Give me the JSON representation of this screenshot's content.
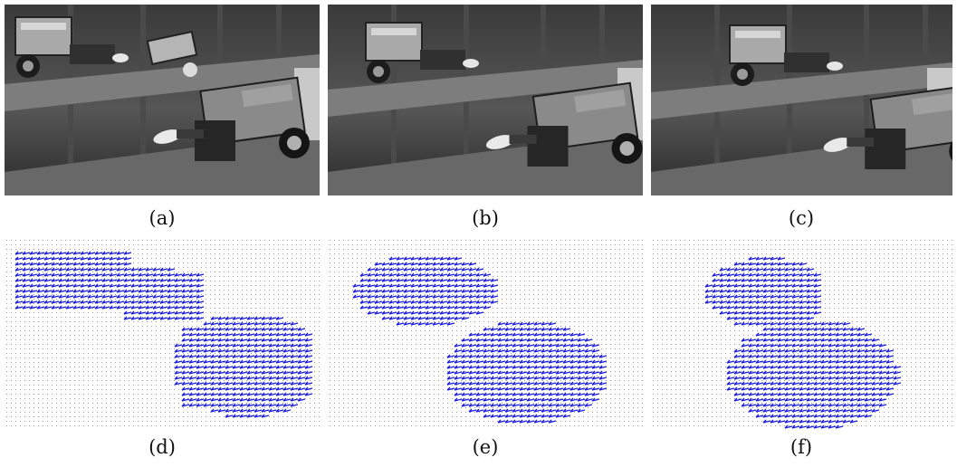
{
  "figure": {
    "panels": [
      {
        "id": "a",
        "caption": "(a)",
        "kind": "frame",
        "frame_variant": 0
      },
      {
        "id": "b",
        "caption": "(b)",
        "kind": "frame",
        "frame_variant": 1
      },
      {
        "id": "c",
        "caption": "(c)",
        "kind": "frame",
        "frame_variant": 2
      },
      {
        "id": "d",
        "caption": "(d)",
        "kind": "motion-field",
        "frame_variant": 0
      },
      {
        "id": "e",
        "caption": "(e)",
        "kind": "motion-field",
        "frame_variant": 1
      },
      {
        "id": "f",
        "caption": "(f)",
        "kind": "motion-field",
        "frame_variant": 2
      }
    ],
    "colors": {
      "vector": "#1a1adc",
      "background_dots": "#9a9aa8",
      "photo_dark": "#2e2e2e",
      "photo_light": "#bdbdbd"
    }
  }
}
